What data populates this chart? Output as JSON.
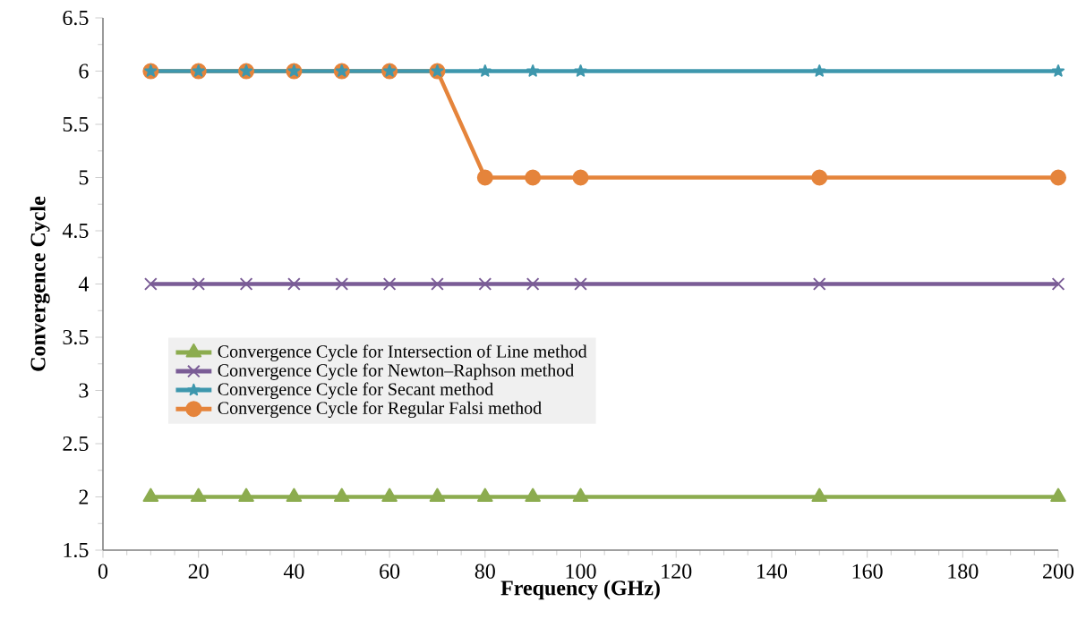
{
  "chart_data": {
    "type": "line",
    "xlabel": "Frequency (GHz)",
    "ylabel": "Convergence Cycle",
    "x": [
      10,
      20,
      30,
      40,
      50,
      60,
      70,
      80,
      90,
      100,
      150,
      200
    ],
    "xlim": [
      0,
      200
    ],
    "xticks": [
      0,
      20,
      40,
      60,
      80,
      100,
      120,
      140,
      160,
      180,
      200
    ],
    "ylim": [
      1.5,
      6.5
    ],
    "yticks": [
      1.5,
      2,
      2.5,
      3,
      3.5,
      4,
      4.5,
      5,
      5.5,
      6,
      6.5
    ],
    "grid": false,
    "legend": "left",
    "line_style": "solid",
    "series": [
      {
        "name": "Convergence Cycle for Intersection of Line method",
        "color": "#8cac4f",
        "marker": "triangle",
        "values": [
          2,
          2,
          2,
          2,
          2,
          2,
          2,
          2,
          2,
          2,
          2,
          2
        ]
      },
      {
        "name": "Convergence Cycle for Newton–Raphson method",
        "color": "#7a5c96",
        "marker": "cross",
        "values": [
          4,
          4,
          4,
          4,
          4,
          4,
          4,
          4,
          4,
          4,
          4,
          4
        ]
      },
      {
        "name": "Convergence Cycle for Secant method",
        "color": "#3e97ad",
        "marker": "star",
        "values": [
          6,
          6,
          6,
          6,
          6,
          6,
          6,
          6,
          6,
          6,
          6,
          6
        ]
      },
      {
        "name": "Convergence Cycle for Regular Falsi method",
        "color": "#e5843b",
        "marker": "circle",
        "values": [
          6,
          6,
          6,
          6,
          6,
          6,
          6,
          5,
          5,
          5,
          5,
          5
        ]
      }
    ]
  }
}
